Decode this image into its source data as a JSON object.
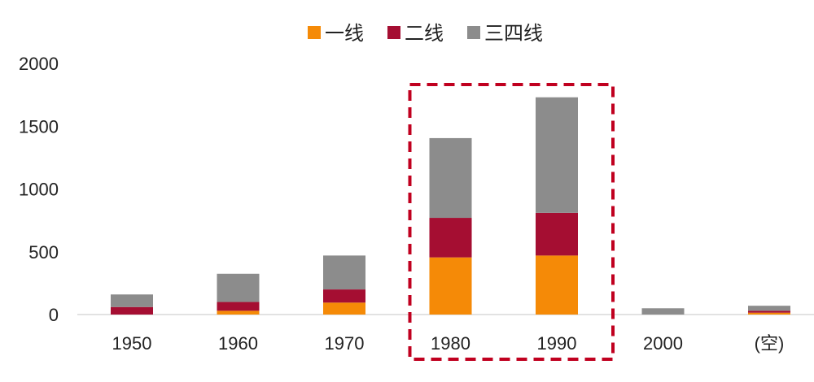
{
  "chart_data": {
    "type": "bar",
    "stacked": true,
    "categories": [
      "1950",
      "1960",
      "1970",
      "1980",
      "1990",
      "2000",
      "(空)"
    ],
    "series": [
      {
        "name": "一线",
        "color": "#F58A07",
        "values": [
          0,
          30,
          95,
          455,
          470,
          0,
          15
        ]
      },
      {
        "name": "二线",
        "color": "#A50E32",
        "values": [
          60,
          70,
          105,
          315,
          340,
          0,
          15
        ]
      },
      {
        "name": "三四线",
        "color": "#8C8C8C",
        "values": [
          100,
          225,
          270,
          635,
          920,
          50,
          40
        ]
      }
    ],
    "y_ticks": [
      "0",
      "500",
      "1000",
      "1500",
      "2000"
    ],
    "ylim": [
      0,
      2000
    ],
    "legend_position": "top",
    "highlight": {
      "categories": [
        "1980",
        "1990"
      ],
      "color": "#C0001F",
      "style": "dashed"
    },
    "grid": false
  }
}
